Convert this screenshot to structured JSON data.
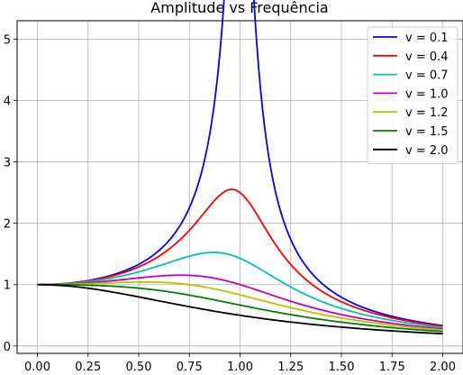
{
  "chart_data": {
    "type": "line",
    "title": "Amplitude vs Frequência",
    "xlabel": "",
    "ylabel": "",
    "xlim": [
      -0.1,
      2.1
    ],
    "ylim": [
      -0.12,
      5.3
    ],
    "xticks": [
      0.0,
      0.25,
      0.5,
      0.75,
      1.0,
      1.25,
      1.5,
      1.75,
      2.0
    ],
    "xtick_labels": [
      "0.00",
      "0.25",
      "0.50",
      "0.75",
      "1.00",
      "1.25",
      "1.50",
      "1.75",
      "2.00"
    ],
    "yticks": [
      0,
      1,
      2,
      3,
      4,
      5
    ],
    "ytick_labels": [
      "0",
      "1",
      "2",
      "3",
      "4",
      "5"
    ],
    "grid": true,
    "legend_position": "top-right",
    "series": [
      {
        "name": "v = 0.1",
        "color": "#0000ff",
        "damping": 0.1
      },
      {
        "name": "v = 0.4",
        "color": "#ff0000",
        "damping": 0.4
      },
      {
        "name": "v = 0.7",
        "color": "#00bfbf",
        "damping": 0.7
      },
      {
        "name": "v = 1.0",
        "color": "#bf00bf",
        "damping": 1.0
      },
      {
        "name": "v = 1.2",
        "color": "#bfbf00",
        "damping": 1.2
      },
      {
        "name": "v = 1.5",
        "color": "#008000",
        "damping": 1.5
      },
      {
        "name": "v = 2.0",
        "color": "#000000",
        "damping": 2.0
      }
    ],
    "x_range": [
      0,
      2
    ],
    "sample_count": 201
  }
}
